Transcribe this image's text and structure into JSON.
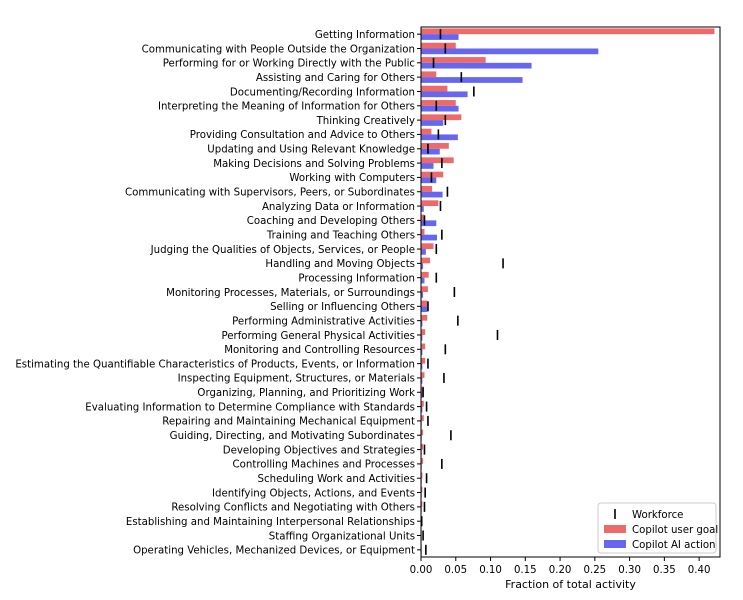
{
  "chart_data": {
    "type": "bar",
    "orientation": "horizontal",
    "title": "",
    "xlabel": "Fraction of total activity",
    "ylabel": "",
    "xlim": [
      0,
      0.43
    ],
    "xticks": [
      "0.00",
      "0.05",
      "0.10",
      "0.15",
      "0.20",
      "0.25",
      "0.30",
      "0.35",
      "0.40"
    ],
    "grid": false,
    "legend_position": "bottom-right",
    "colors": {
      "user_goal": "#ee6a6a",
      "ai_action": "#6666ee",
      "workforce": "#000000"
    },
    "categories": [
      "Getting Information",
      "Communicating with People Outside the Organization",
      "Performing for or Working Directly with the Public",
      "Assisting and Caring for Others",
      "Documenting/Recording Information",
      "Interpreting the Meaning of Information for Others",
      "Thinking Creatively",
      "Providing Consultation and Advice to Others",
      "Updating and Using Relevant Knowledge",
      "Making Decisions and Solving Problems",
      "Working with Computers",
      "Communicating with Supervisors, Peers, or Subordinates",
      "Analyzing Data or Information",
      "Coaching and Developing Others",
      "Training and Teaching Others",
      "Judging the Qualities of Objects, Services, or People",
      "Handling and Moving Objects",
      "Processing Information",
      "Monitoring Processes, Materials, or Surroundings",
      "Selling or Influencing Others",
      "Performing Administrative Activities",
      "Performing General Physical Activities",
      "Monitoring and Controlling Resources",
      "Estimating the Quantifiable Characteristics of Products, Events, or Information",
      "Inspecting Equipment, Structures, or Materials",
      "Organizing, Planning, and Prioritizing Work",
      "Evaluating Information to Determine Compliance with Standards",
      "Repairing and Maintaining Mechanical Equipment",
      "Guiding, Directing, and Motivating Subordinates",
      "Developing Objectives and Strategies",
      "Controlling Machines and Processes",
      "Scheduling Work and Activities",
      "Identifying Objects, Actions, and Events",
      "Resolving Conflicts and Negotiating with Others",
      "Establishing and Maintaining Interpersonal Relationships",
      "Staffing Organizational Units",
      "Operating Vehicles, Mechanized Devices, or Equipment"
    ],
    "series": [
      {
        "name": "Copilot user goal",
        "key": "user_goal",
        "values": [
          0.422,
          0.05,
          0.093,
          0.022,
          0.038,
          0.05,
          0.058,
          0.015,
          0.04,
          0.047,
          0.032,
          0.016,
          0.025,
          0.005,
          0.005,
          0.018,
          0.013,
          0.011,
          0.01,
          0.009,
          0.009,
          0.006,
          0.006,
          0.006,
          0.005,
          0.004,
          0.004,
          0.004,
          0.003,
          0.003,
          0.003,
          0.002,
          0.002,
          0.002,
          0.001,
          0.001,
          0.001
        ]
      },
      {
        "name": "Copilot AI action",
        "key": "ai_action",
        "values": [
          0.054,
          0.255,
          0.159,
          0.146,
          0.067,
          0.054,
          0.032,
          0.053,
          0.027,
          0.018,
          0.022,
          0.031,
          0.004,
          0.022,
          0.023,
          0.007,
          0.003,
          0.005,
          0.003,
          0.009,
          0.002,
          0.002,
          0.002,
          0.002,
          0.002,
          0.002,
          0.002,
          0.001,
          0.001,
          0.001,
          0.001,
          0.001,
          0.001,
          0.001,
          0.001,
          0.001,
          0.001
        ]
      },
      {
        "name": "Workforce",
        "key": "workforce",
        "values": [
          0.028,
          0.035,
          0.018,
          0.058,
          0.076,
          0.022,
          0.035,
          0.025,
          0.01,
          0.03,
          0.015,
          0.038,
          0.028,
          0.005,
          0.03,
          0.022,
          0.118,
          0.022,
          0.048,
          0.01,
          0.053,
          0.11,
          0.035,
          0.01,
          0.033,
          0.003,
          0.008,
          0.01,
          0.043,
          0.005,
          0.03,
          0.008,
          0.006,
          0.005,
          0.001,
          0.003,
          0.007
        ]
      }
    ]
  }
}
